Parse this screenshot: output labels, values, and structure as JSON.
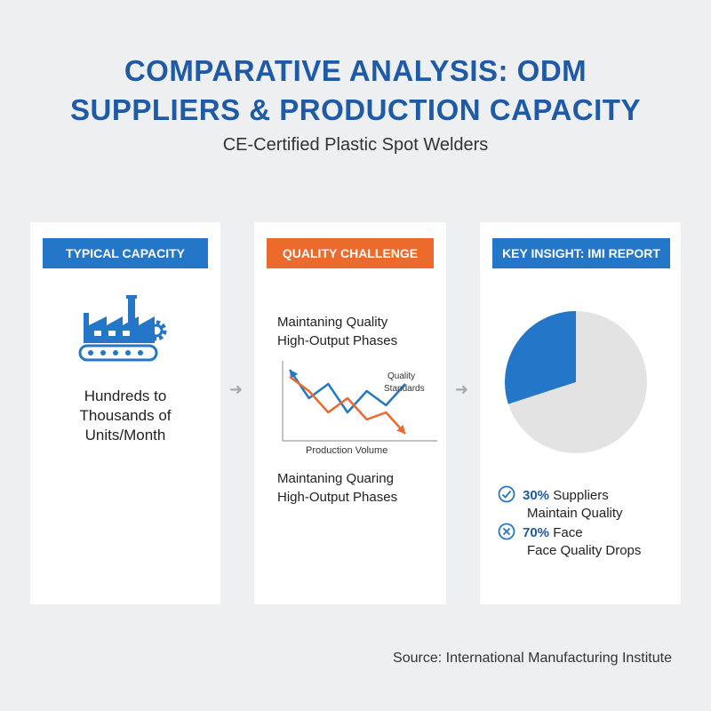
{
  "header": {
    "title_line1": "COMPARATIVE ANALYSIS: ODM",
    "title_line2": "SUPPLIERS & PRODUCTION CAPACITY",
    "subtitle": "CE-Certified Plastic Spot Welders"
  },
  "cards": {
    "capacity": {
      "badge": "TYPICAL CAPACITY",
      "line1": "Hundreds to",
      "line2": "Thousands of",
      "line3": "Units/Month",
      "icon": "factory-icon"
    },
    "quality": {
      "badge": "QUALITY CHALLENGE",
      "heading_line1": "Maintaning Quality",
      "heading_line2": "High-Output Phases",
      "chart_label_line1": "Quality",
      "chart_label_line2": "Standards",
      "chart_xlabel": "Production Volume",
      "footer_line1": "Maintaning Quaring",
      "footer_line2": "High-Output Phases"
    },
    "insight": {
      "badge": "KEY INSIGHT: IMI REPORT",
      "stat1_pct": "30%",
      "stat1_text": "Suppliers",
      "stat1_line2": "Maintain Quality",
      "stat2_pct": "70%",
      "stat2_text": "Face",
      "stat2_line2": "Face Quality Drops"
    }
  },
  "source": "Source: International Manufacturing Institute",
  "chart_data": [
    {
      "type": "pie",
      "categories": [
        "Suppliers Maintain Quality",
        "Face Quality Drops"
      ],
      "values": [
        30,
        70
      ],
      "colors": [
        "#2477c8",
        "#e3e3e3"
      ]
    },
    {
      "type": "line",
      "series": [
        {
          "name": "Quality Standards",
          "color": "#2477c8",
          "x": [
            0,
            1,
            2,
            3,
            4,
            5,
            6
          ],
          "values": [
            9,
            5,
            7,
            3,
            6,
            4,
            7
          ]
        },
        {
          "color": "#ec6a2c",
          "x": [
            0,
            1,
            2,
            3,
            4,
            5,
            6
          ],
          "values": [
            8,
            6,
            3,
            5,
            2,
            3,
            0
          ]
        }
      ],
      "xlabel": "Production Volume",
      "ylim": [
        0,
        10
      ]
    }
  ],
  "colors": {
    "primary": "#1e5aa6",
    "accent_blue": "#2477c8",
    "accent_orange": "#ec6a2c"
  }
}
